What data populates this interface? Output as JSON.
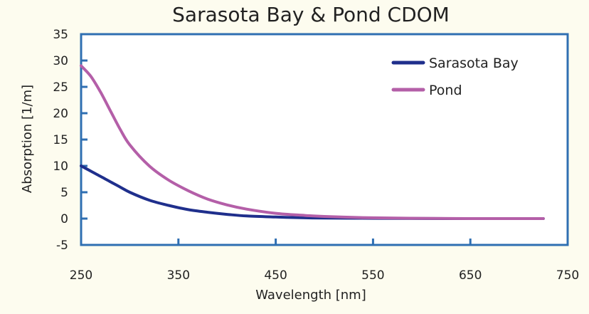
{
  "chart_data": {
    "type": "line",
    "title": "Sarasota Bay & Pond CDOM",
    "xlabel": "Wavelength [nm]",
    "ylabel": "Absorption [1/m]",
    "xlim": [
      250,
      750
    ],
    "ylim": [
      -5,
      35
    ],
    "x_ticks": [
      250,
      350,
      450,
      550,
      650,
      750
    ],
    "y_ticks": [
      -5,
      0,
      5,
      10,
      15,
      20,
      25,
      30,
      35
    ],
    "grid": false,
    "legend_position": "top-right",
    "series": [
      {
        "name": "Sarasota Bay",
        "color": "#1f2f8c",
        "x": [
          250,
          260,
          270,
          280,
          290,
          300,
          320,
          340,
          360,
          380,
          400,
          420,
          450,
          480,
          500,
          550,
          600,
          650,
          700,
          725
        ],
        "y": [
          10.0,
          9.0,
          8.0,
          7.0,
          6.0,
          5.0,
          3.5,
          2.5,
          1.7,
          1.2,
          0.8,
          0.5,
          0.3,
          0.15,
          0.1,
          0.05,
          0.02,
          0.0,
          0.0,
          0.0
        ]
      },
      {
        "name": "Pond",
        "color": "#b45fa8",
        "x": [
          250,
          260,
          270,
          280,
          290,
          300,
          320,
          340,
          360,
          380,
          400,
          420,
          450,
          480,
          500,
          550,
          600,
          650,
          700,
          725
        ],
        "y": [
          29.0,
          27.0,
          24.0,
          20.5,
          17.0,
          14.0,
          10.0,
          7.3,
          5.3,
          3.7,
          2.6,
          1.8,
          1.0,
          0.6,
          0.4,
          0.15,
          0.05,
          0.0,
          0.0,
          0.0
        ]
      }
    ]
  }
}
